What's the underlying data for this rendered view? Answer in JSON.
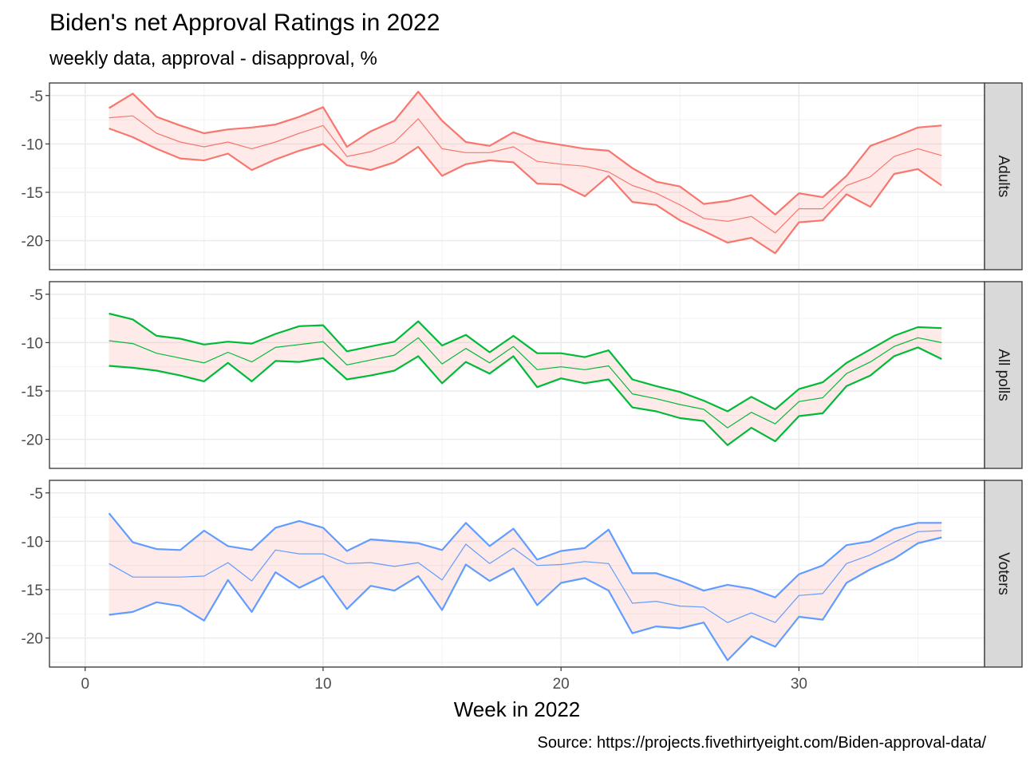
{
  "chart_data": {
    "type": "line",
    "title": "Biden's net Approval Ratings in 2022",
    "subtitle": "weekly data, approval - disapproval, %",
    "xlabel": "Week in 2022",
    "ylabel": "",
    "caption": "Source: https://projects.fivethirtyeight.com/Biden-approval-data/",
    "xlim": [
      -1.5,
      37.8
    ],
    "ylim": [
      -23.0,
      -3.7
    ],
    "x_ticks": [
      0,
      10,
      20,
      30
    ],
    "y_ticks": [
      -5,
      -10,
      -15,
      -20
    ],
    "grid": true,
    "legend": "none",
    "ribbon_fill": "#F8766D",
    "x": [
      1,
      2,
      3,
      4,
      5,
      6,
      7,
      8,
      9,
      10,
      11,
      12,
      13,
      14,
      15,
      16,
      17,
      18,
      19,
      20,
      21,
      22,
      23,
      24,
      25,
      26,
      27,
      28,
      29,
      30,
      31,
      32,
      33,
      34,
      35,
      36
    ],
    "panels": [
      {
        "label": "Adults",
        "color": "#F8766D",
        "upper": [
          -6.3,
          -4.8,
          -7.2,
          -8.1,
          -8.9,
          -8.5,
          -8.3,
          -8.0,
          -7.2,
          -6.2,
          -10.3,
          -8.7,
          -7.6,
          -4.6,
          -7.6,
          -9.8,
          -10.2,
          -8.8,
          -9.7,
          -10.1,
          -10.5,
          -10.7,
          -12.5,
          -13.9,
          -14.4,
          -16.2,
          -15.9,
          -15.3,
          -17.3,
          -15.1,
          -15.5,
          -13.3,
          -10.2,
          -9.3,
          -8.3,
          -8.1
        ],
        "mid": [
          -7.3,
          -7.1,
          -8.9,
          -9.8,
          -10.3,
          -9.8,
          -10.5,
          -9.8,
          -8.9,
          -8.1,
          -11.3,
          -10.8,
          -9.8,
          -7.4,
          -10.5,
          -10.9,
          -10.9,
          -10.3,
          -11.8,
          -12.1,
          -12.3,
          -12.9,
          -14.3,
          -15.1,
          -16.3,
          -17.7,
          -18.0,
          -17.5,
          -19.2,
          -16.7,
          -16.7,
          -14.3,
          -13.4,
          -11.3,
          -10.5,
          -11.2
        ],
        "lower": [
          -8.4,
          -9.3,
          -10.5,
          -11.5,
          -11.7,
          -11.0,
          -12.7,
          -11.6,
          -10.7,
          -10.0,
          -12.2,
          -12.7,
          -11.9,
          -10.3,
          -13.3,
          -12.1,
          -11.7,
          -11.9,
          -14.1,
          -14.2,
          -15.4,
          -13.3,
          -16.0,
          -16.3,
          -17.9,
          -19.0,
          -20.2,
          -19.7,
          -21.3,
          -18.1,
          -17.9,
          -15.2,
          -16.5,
          -13.1,
          -12.6,
          -14.3
        ]
      },
      {
        "label": "All polls",
        "color": "#00BA38",
        "upper": [
          -7.0,
          -7.6,
          -9.3,
          -9.6,
          -10.2,
          -9.9,
          -10.1,
          -9.1,
          -8.3,
          -8.2,
          -10.9,
          -10.4,
          -9.9,
          -7.8,
          -10.3,
          -9.2,
          -11.0,
          -9.3,
          -11.1,
          -11.1,
          -11.5,
          -10.8,
          -13.8,
          -14.5,
          -15.1,
          -16.0,
          -17.1,
          -15.6,
          -16.9,
          -14.8,
          -14.1,
          -12.1,
          -10.7,
          -9.3,
          -8.4,
          -8.5
        ],
        "mid": [
          -9.8,
          -10.1,
          -11.1,
          -11.6,
          -12.1,
          -11.0,
          -12.0,
          -10.5,
          -10.2,
          -9.9,
          -12.3,
          -11.8,
          -11.3,
          -9.5,
          -12.2,
          -10.6,
          -12.1,
          -10.4,
          -12.8,
          -12.5,
          -12.8,
          -12.4,
          -15.3,
          -15.8,
          -16.4,
          -16.9,
          -18.8,
          -17.2,
          -18.4,
          -16.1,
          -15.7,
          -13.2,
          -12.0,
          -10.4,
          -9.5,
          -10.0
        ],
        "lower": [
          -12.4,
          -12.6,
          -12.9,
          -13.4,
          -14.0,
          -12.1,
          -14.0,
          -11.9,
          -12.0,
          -11.6,
          -13.8,
          -13.4,
          -12.9,
          -11.4,
          -14.2,
          -12.0,
          -13.2,
          -11.4,
          -14.6,
          -13.7,
          -14.2,
          -13.8,
          -16.7,
          -17.1,
          -17.8,
          -18.1,
          -20.6,
          -18.8,
          -20.2,
          -17.6,
          -17.3,
          -14.5,
          -13.4,
          -11.4,
          -10.5,
          -11.7
        ]
      },
      {
        "label": "Voters",
        "color": "#619CFF",
        "upper": [
          -7.1,
          -10.1,
          -10.8,
          -10.9,
          -8.9,
          -10.5,
          -10.9,
          -8.6,
          -7.9,
          -8.6,
          -11.0,
          -9.8,
          -10.0,
          -10.2,
          -10.9,
          -8.1,
          -10.5,
          -8.7,
          -11.9,
          -11.0,
          -10.7,
          -8.8,
          -13.3,
          -13.3,
          -14.1,
          -15.1,
          -14.5,
          -14.9,
          -15.8,
          -13.4,
          -12.5,
          -10.4,
          -10.0,
          -8.7,
          -8.1,
          -8.1
        ],
        "mid": [
          -12.3,
          -13.7,
          -13.7,
          -13.7,
          -13.6,
          -12.2,
          -14.1,
          -10.9,
          -11.3,
          -11.3,
          -12.3,
          -12.2,
          -12.6,
          -12.2,
          -14.0,
          -10.3,
          -12.3,
          -10.7,
          -12.5,
          -12.4,
          -12.1,
          -12.3,
          -16.4,
          -16.2,
          -16.7,
          -16.8,
          -18.4,
          -17.4,
          -18.4,
          -15.6,
          -15.4,
          -12.3,
          -11.4,
          -10.1,
          -9.0,
          -8.9
        ],
        "lower": [
          -17.6,
          -17.3,
          -16.3,
          -16.7,
          -18.2,
          -14.0,
          -17.3,
          -13.2,
          -14.8,
          -13.6,
          -17.0,
          -14.6,
          -15.1,
          -13.6,
          -17.1,
          -12.4,
          -14.1,
          -12.8,
          -16.6,
          -14.3,
          -13.8,
          -15.1,
          -19.5,
          -18.8,
          -19.0,
          -18.4,
          -22.3,
          -19.8,
          -20.9,
          -17.8,
          -18.1,
          -14.3,
          -12.9,
          -11.8,
          -10.2,
          -9.6
        ]
      }
    ]
  }
}
